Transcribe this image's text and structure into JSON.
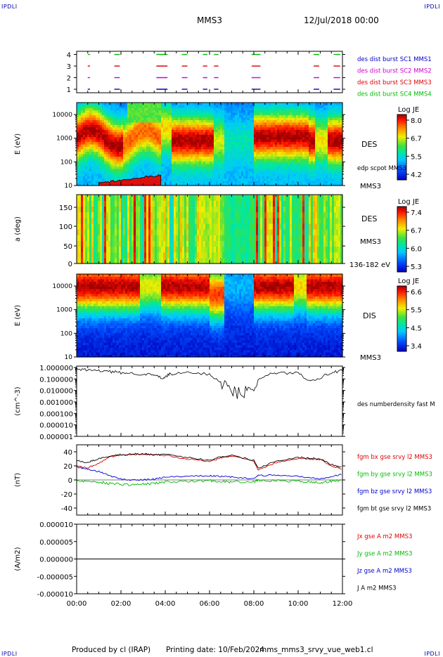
{
  "header": {
    "corner_tl": "IPDLI",
    "corner_tr": "IPDLI",
    "corner_bl": "IPDLI",
    "corner_br": "IPDLI",
    "spacecraft": "MMS3",
    "datetime": "12/Jul/2018 00:00"
  },
  "footer": {
    "produced": "Produced by cl (IRAP)",
    "printing": "Printing date: 10/Feb/2024",
    "file": "mms_mms3_srvy_vue_web1.cl"
  },
  "colors": {
    "mms1": "#0000cc",
    "mms2": "#cc00cc",
    "mms3": "#dd0000",
    "mms4": "#00bb00",
    "bx": "#dd0000",
    "by": "#00bb00",
    "bz": "#0000cc",
    "bt": "#000000"
  },
  "chart_data": [
    {
      "type": "scatter",
      "name": "burst",
      "y_ticks": [
        "1",
        "2",
        "3",
        "4"
      ],
      "legend": [
        {
          "label": "des dist burst SC1 MMS1",
          "color": "#0000cc"
        },
        {
          "label": "des dist burst SC2 MMS2",
          "color": "#cc00cc"
        },
        {
          "label": "des dist burst SC3 MMS3",
          "color": "#dd0000"
        },
        {
          "label": "des dist burst SC4 MMS4",
          "color": "#00bb00"
        }
      ],
      "intervals": [
        [
          0.5,
          0.6
        ],
        [
          1.7,
          1.95
        ],
        [
          3.6,
          4.1
        ],
        [
          4.75,
          5.0
        ],
        [
          5.7,
          5.9
        ],
        [
          6.2,
          6.4
        ],
        [
          7.9,
          8.3
        ],
        [
          10.7,
          10.95
        ],
        [
          11.6,
          11.9
        ]
      ]
    },
    {
      "type": "heatmap",
      "name": "des-energy",
      "ylabel": "E (eV)",
      "y_ticks": [
        "10",
        "100",
        "1000",
        "10000"
      ],
      "instrument": "DES",
      "sc": "MMS3",
      "overlay_label": "edp scpot MMS3",
      "colorbar": {
        "label": "Log JE",
        "ticks": [
          "8.0",
          "6.7",
          "5.5",
          "4.2"
        ]
      }
    },
    {
      "type": "heatmap",
      "name": "des-pitch",
      "ylabel": "a (deg)",
      "y_ticks": [
        "0",
        "50",
        "100",
        "150"
      ],
      "instrument": "DES",
      "sc": "MMS3",
      "energy_range": "136-182 eV",
      "colorbar": {
        "label": "Log JE",
        "ticks": [
          "7.4",
          "6.7",
          "6.0",
          "5.3"
        ]
      }
    },
    {
      "type": "heatmap",
      "name": "dis-energy",
      "ylabel": "E (eV)",
      "y_ticks": [
        "10",
        "100",
        "1000",
        "10000"
      ],
      "instrument": "DIS",
      "sc": "MMS3",
      "colorbar": {
        "label": "Log JE",
        "ticks": [
          "6.6",
          "5.5",
          "4.5",
          "3.4"
        ]
      }
    },
    {
      "type": "line",
      "name": "density",
      "ylabel": "(cm^-3)",
      "y_ticks": [
        "1.000000",
        "0.100000",
        "0.010000",
        "0.001000",
        "0.000100",
        "0.000010",
        "0.000001"
      ],
      "legend": [
        {
          "label": "des numberdensity fast M",
          "color": "#000000"
        }
      ],
      "x": [
        0,
        0.5,
        1,
        1.5,
        2,
        2.5,
        3,
        3.5,
        3.9,
        4.2,
        5,
        6,
        6.5,
        7,
        7.5,
        8,
        8.5,
        9,
        10,
        10.5,
        11,
        11.5,
        12
      ],
      "values": [
        0.8,
        0.7,
        0.6,
        0.5,
        0.4,
        0.35,
        0.3,
        0.25,
        0.12,
        0.3,
        0.4,
        0.3,
        0.06,
        0.01,
        0.005,
        0.04,
        0.25,
        0.35,
        0.4,
        0.08,
        0.15,
        0.4,
        0.6
      ]
    },
    {
      "type": "line",
      "name": "magnetic-field",
      "ylabel": "(nT)",
      "y_ticks": [
        "40",
        "20",
        "0",
        "-20",
        "-40"
      ],
      "ylim": [
        -50,
        50
      ],
      "x": [
        0,
        0.5,
        1,
        1.5,
        2,
        2.5,
        3,
        3.5,
        4,
        5,
        6,
        6.5,
        7,
        8,
        8.2,
        9,
        10,
        10.5,
        11,
        11.5,
        12
      ],
      "series": [
        {
          "name": "fgm bx gse srvy l2 MMS3",
          "color": "#dd0000",
          "values": [
            20,
            17,
            24,
            33,
            35,
            36,
            37,
            36,
            35,
            30,
            26,
            31,
            34,
            27,
            14,
            25,
            31,
            30,
            29,
            20,
            15
          ]
        },
        {
          "name": "fgm by gse srvy l2 MMS3",
          "color": "#00bb00",
          "values": [
            -1,
            -2,
            -3,
            -5,
            -6,
            -7,
            -6,
            -5,
            -3,
            -2,
            -1,
            -2,
            -3,
            -2,
            -1,
            -1,
            -2,
            -3,
            -4,
            -2,
            0
          ]
        },
        {
          "name": "fgm bz gse srvy l2 MMS3",
          "color": "#0000cc",
          "values": [
            18,
            15,
            12,
            6,
            1,
            0,
            0,
            1,
            4,
            5,
            6,
            5,
            4,
            2,
            6,
            7,
            5,
            3,
            2,
            5,
            8
          ]
        },
        {
          "name": "fgm bt gse srvy l2 MMS3",
          "color": "#000000",
          "values": [
            27,
            25,
            30,
            34,
            36,
            37,
            37,
            36,
            36,
            32,
            28,
            33,
            35,
            28,
            17,
            27,
            32,
            31,
            30,
            22,
            18
          ]
        }
      ]
    },
    {
      "type": "line",
      "name": "current-density",
      "ylabel": "(A/m2)",
      "y_ticks": [
        "0.000010",
        "0.000005",
        "0.000000",
        "-0.000005",
        "-0.000010"
      ],
      "ylim": [
        -1e-05,
        1e-05
      ],
      "x_ticks": [
        "00:00",
        "02:00",
        "04:00",
        "06:00",
        "08:00",
        "10:00",
        "12:00"
      ],
      "legend": [
        {
          "label": "Jx gse A m2 MMS3",
          "color": "#dd0000"
        },
        {
          "label": "Jy gse A m2 MMS3",
          "color": "#00bb00"
        },
        {
          "label": "Jz gse A m2 MMS3",
          "color": "#0000cc"
        },
        {
          "label": "J A m2 MMS3",
          "color": "#000000"
        }
      ],
      "x": [
        0,
        12
      ],
      "values": [
        0,
        0
      ]
    }
  ]
}
